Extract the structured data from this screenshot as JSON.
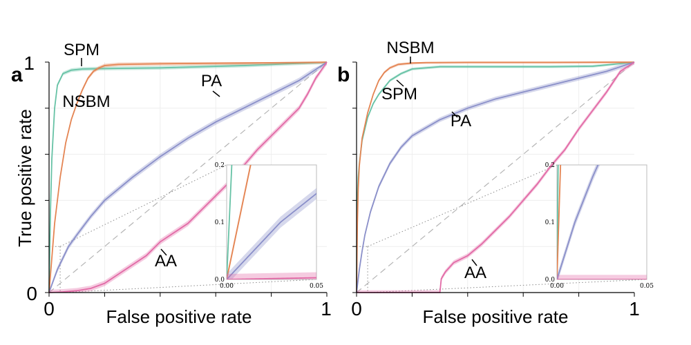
{
  "figure": {
    "ylabel": "True positive rate",
    "xlabel": "False positive rate"
  },
  "colors": {
    "SPM": "#66c2a5",
    "NSBM": "#e48452",
    "PA": "#8a8fc9",
    "AA": "#e26aa6",
    "diagonal": "#b5b5b5",
    "grid": "#eeeeee"
  },
  "chart_data": [
    {
      "panel": "a",
      "type": "line",
      "title": "",
      "xlabel": "False positive rate",
      "ylabel": "True positive rate",
      "xlim": [
        0,
        1
      ],
      "ylim": [
        0,
        1
      ],
      "x_ticks": [
        "0",
        "1"
      ],
      "y_ticks": [
        "0",
        "1"
      ],
      "series": [
        {
          "name": "SPM",
          "x": [
            0,
            0.005,
            0.01,
            0.02,
            0.03,
            0.05,
            0.08,
            0.12,
            0.2,
            0.4,
            0.7,
            1.0
          ],
          "y": [
            0,
            0.35,
            0.58,
            0.8,
            0.9,
            0.95,
            0.965,
            0.97,
            0.972,
            0.975,
            0.985,
            1.0
          ],
          "band": 0.008
        },
        {
          "name": "NSBM",
          "x": [
            0,
            0.02,
            0.04,
            0.06,
            0.08,
            0.1,
            0.12,
            0.14,
            0.16,
            0.18,
            0.2,
            0.25,
            0.4,
            0.7,
            1.0
          ],
          "y": [
            0,
            0.3,
            0.5,
            0.65,
            0.75,
            0.82,
            0.88,
            0.93,
            0.96,
            0.975,
            0.985,
            0.99,
            0.993,
            0.996,
            1.0
          ],
          "band": 0.008
        },
        {
          "name": "PA",
          "x": [
            0,
            0.03,
            0.07,
            0.1,
            0.15,
            0.2,
            0.3,
            0.4,
            0.5,
            0.6,
            0.7,
            0.8,
            0.9,
            0.95,
            1.0
          ],
          "y": [
            0,
            0.1,
            0.2,
            0.25,
            0.33,
            0.4,
            0.5,
            0.59,
            0.67,
            0.74,
            0.8,
            0.86,
            0.92,
            0.96,
            1.0
          ],
          "band": 0.012
        },
        {
          "name": "AA",
          "x": [
            0,
            0.05,
            0.1,
            0.15,
            0.2,
            0.25,
            0.3,
            0.35,
            0.4,
            0.45,
            0.5,
            0.55,
            0.6,
            0.65,
            0.7,
            0.75,
            0.8,
            0.85,
            0.9,
            0.93,
            0.96,
            1.0
          ],
          "y": [
            0,
            0.003,
            0.008,
            0.018,
            0.04,
            0.08,
            0.12,
            0.16,
            0.22,
            0.26,
            0.3,
            0.36,
            0.42,
            0.48,
            0.55,
            0.62,
            0.68,
            0.74,
            0.8,
            0.86,
            0.93,
            1.0
          ],
          "band": 0.012
        }
      ],
      "diagonal": true,
      "annotations": [
        {
          "text": "SPM",
          "series": "SPM"
        },
        {
          "text": "NSBM",
          "series": "NSBM"
        },
        {
          "text": "PA",
          "series": "PA"
        },
        {
          "text": "AA",
          "series": "AA"
        }
      ],
      "inset": {
        "xlim": [
          0,
          0.05
        ],
        "ylim": [
          0,
          0.2
        ],
        "x_ticks": [
          "0.00",
          "0.05"
        ],
        "y_ticks": [
          "0.0",
          "0.1",
          "0.2"
        ]
      }
    },
    {
      "panel": "b",
      "type": "line",
      "title": "",
      "xlabel": "False positive rate",
      "ylabel": "",
      "xlim": [
        0,
        1
      ],
      "ylim": [
        0,
        1
      ],
      "x_ticks": [
        "0",
        "1"
      ],
      "y_ticks": [],
      "series": [
        {
          "name": "SPM",
          "x": [
            0,
            0.001,
            0.003,
            0.006,
            0.01,
            0.02,
            0.04,
            0.06,
            0.08,
            0.1,
            0.12,
            0.16,
            0.2,
            0.3,
            0.5,
            0.7,
            0.85,
            1.0
          ],
          "y": [
            0,
            0.3,
            0.42,
            0.5,
            0.56,
            0.66,
            0.76,
            0.82,
            0.86,
            0.89,
            0.92,
            0.95,
            0.97,
            0.98,
            0.98,
            0.98,
            0.982,
            1.0
          ],
          "band": 0.006
        },
        {
          "name": "NSBM",
          "x": [
            0,
            0.003,
            0.006,
            0.01,
            0.02,
            0.04,
            0.06,
            0.08,
            0.1,
            0.12,
            0.15,
            0.2,
            0.25,
            0.4,
            0.7,
            1.0
          ],
          "y": [
            0,
            0.3,
            0.45,
            0.55,
            0.67,
            0.78,
            0.86,
            0.92,
            0.955,
            0.975,
            0.99,
            0.996,
            0.998,
            0.999,
            0.999,
            1.0
          ],
          "band": 0.006
        },
        {
          "name": "PA",
          "x": [
            0,
            0.005,
            0.01,
            0.02,
            0.03,
            0.05,
            0.08,
            0.12,
            0.16,
            0.2,
            0.3,
            0.4,
            0.5,
            0.6,
            0.7,
            0.8,
            0.9,
            0.95,
            1.0
          ],
          "y": [
            0,
            0.05,
            0.1,
            0.18,
            0.25,
            0.35,
            0.46,
            0.56,
            0.63,
            0.68,
            0.75,
            0.8,
            0.84,
            0.87,
            0.9,
            0.93,
            0.96,
            0.98,
            1.0
          ],
          "band": 0.01
        },
        {
          "name": "AA",
          "x": [
            0,
            0.05,
            0.1,
            0.2,
            0.3,
            0.305,
            0.32,
            0.35,
            0.4,
            0.45,
            0.5,
            0.55,
            0.6,
            0.65,
            0.7,
            0.75,
            0.8,
            0.85,
            0.9,
            0.95,
            1.0
          ],
          "y": [
            0,
            0,
            0,
            0,
            0,
            0.06,
            0.09,
            0.13,
            0.16,
            0.21,
            0.27,
            0.33,
            0.4,
            0.47,
            0.55,
            0.62,
            0.71,
            0.79,
            0.87,
            0.96,
            1.0
          ],
          "band": 0.01
        }
      ],
      "diagonal": true,
      "annotations": [
        {
          "text": "NSBM",
          "series": "NSBM"
        },
        {
          "text": "SPM",
          "series": "SPM"
        },
        {
          "text": "PA",
          "series": "PA"
        },
        {
          "text": "AA",
          "series": "AA"
        }
      ],
      "inset": {
        "xlim": [
          0,
          0.05
        ],
        "ylim": [
          0,
          0.2
        ],
        "x_ticks": [
          "0.00",
          "0.05"
        ],
        "y_ticks": [
          "0.0",
          "0.1",
          "0.2"
        ]
      }
    }
  ]
}
